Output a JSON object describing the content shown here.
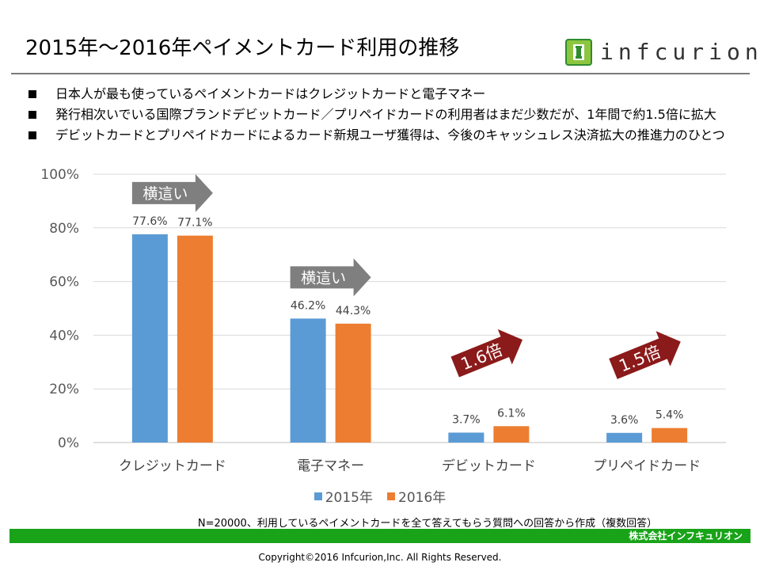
{
  "header": {
    "title": "2015年～2016年ペイメントカード利用の推移",
    "logo_text": "infcurion"
  },
  "bullets": [
    "日本人が最も使っているペイメントカードはクレジットカードと電子マネー",
    "発行相次いでいる国際ブランドデビットカード／プリペイドカードの利用者はまだ少数だが、1年間で約1.5倍に拡大",
    "デビットカードとプリペイドカードによるカード新規ユーザ獲得は、今後のキャッシュレス決済拡大の推進力のひとつ"
  ],
  "chart_data": {
    "type": "bar",
    "categories": [
      "クレジットカード",
      "電子マネー",
      "デビットカード",
      "プリペイドカード"
    ],
    "series": [
      {
        "name": "2015年",
        "values": [
          77.6,
          46.2,
          3.7,
          3.6
        ],
        "labels": [
          "77.6%",
          "46.2%",
          "3.7%",
          "3.6%"
        ],
        "color": "#5b9bd5"
      },
      {
        "name": "2016年",
        "values": [
          77.1,
          44.3,
          6.1,
          5.4
        ],
        "labels": [
          "77.1%",
          "44.3%",
          "6.1%",
          "5.4%"
        ],
        "color": "#ed7d31"
      }
    ],
    "ylim": [
      0,
      100
    ],
    "yticks": [
      "0%",
      "20%",
      "40%",
      "60%",
      "80%",
      "100%"
    ],
    "grid": true,
    "legend": "bottom",
    "annotations": [
      {
        "category": "クレジットカード",
        "text": "横這い",
        "style": "flat-arrow",
        "color": "#7f7f7f"
      },
      {
        "category": "電子マネー",
        "text": "横這い",
        "style": "flat-arrow",
        "color": "#7f7f7f"
      },
      {
        "category": "デビットカード",
        "text": "1.6倍",
        "style": "up-arrow",
        "color": "#8b1a1a"
      },
      {
        "category": "プリペイドカード",
        "text": "1.5倍",
        "style": "up-arrow",
        "color": "#8b1a1a"
      }
    ]
  },
  "footer": {
    "note": "N=20000、利用しているペイメントカードを全て答えてもらう質問への回答から作成（複数回答）",
    "company": "株式会社インフキュリオン",
    "copyright": "Copyright©2016  Infcurion,Inc.  All Rights Reserved."
  }
}
